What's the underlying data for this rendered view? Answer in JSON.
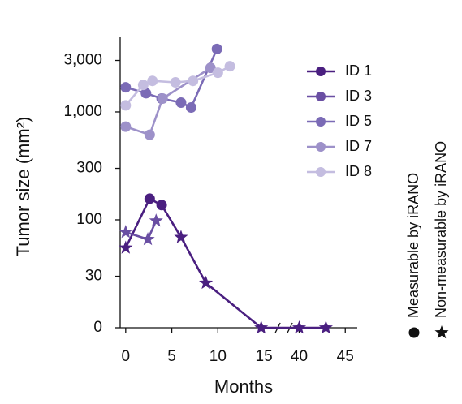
{
  "chart_data": {
    "type": "line",
    "xlabel": "Months",
    "ylabel": "Tumor size (mm²)",
    "yscale": "symlog",
    "linthresh": 10,
    "ylim": [
      0,
      5000
    ],
    "yticks": [
      0,
      30,
      100,
      300,
      {
        "value": 1000,
        "label": "1,000"
      },
      {
        "value": 3000,
        "label": "3,000"
      }
    ],
    "xlim": [
      -0.6,
      46.3
    ],
    "xbreak": [
      16.5,
      39
    ],
    "xticks": [
      0,
      5,
      10,
      15,
      40,
      45
    ],
    "legend": "upper right",
    "series": [
      {
        "name": "ID 1",
        "color": "#4a1f80",
        "x": [
          0,
          2.6,
          3.9,
          6.0,
          8.7,
          14.7,
          40,
          42.9
        ],
        "values": [
          55,
          157,
          137,
          69,
          26,
          0,
          0,
          0
        ],
        "markers": [
          "star",
          "circle",
          "circle",
          "star",
          "star",
          "star",
          "star",
          "star"
        ]
      },
      {
        "name": "ID 3",
        "color": "#6a4fa3",
        "x": [
          0,
          2.4,
          3.3
        ],
        "values": [
          77,
          66,
          98
        ],
        "markers": [
          "star",
          "star",
          "star"
        ]
      },
      {
        "name": "ID 5",
        "color": "#7b6bb6",
        "x": [
          0,
          2.2,
          3.9,
          6.0,
          7.1,
          9.9
        ],
        "values": [
          1690,
          1490,
          1330,
          1220,
          1100,
          3830
        ],
        "markers": [
          "circle",
          "circle",
          "circle",
          "circle",
          "circle",
          "circle"
        ]
      },
      {
        "name": "ID 7",
        "color": "#9d91c9",
        "x": [
          0,
          2.6,
          4.0,
          9.2
        ],
        "values": [
          730,
          614,
          1330,
          2560
        ],
        "markers": [
          "circle",
          "circle",
          "circle",
          "circle"
        ]
      },
      {
        "name": "ID 8",
        "color": "#c4bde0",
        "x": [
          0,
          1.9,
          2.9,
          5.4,
          7.3,
          10,
          11.3
        ],
        "values": [
          1150,
          1780,
          1940,
          1880,
          1940,
          2310,
          2650
        ],
        "markers": [
          "circle",
          "circle",
          "circle",
          "circle",
          "circle",
          "circle",
          "circle"
        ]
      }
    ],
    "marker_legend": [
      {
        "marker": "circle",
        "label": "Measurable by iRANO"
      },
      {
        "marker": "star",
        "label": "Non-measurable by iRANO"
      }
    ]
  }
}
